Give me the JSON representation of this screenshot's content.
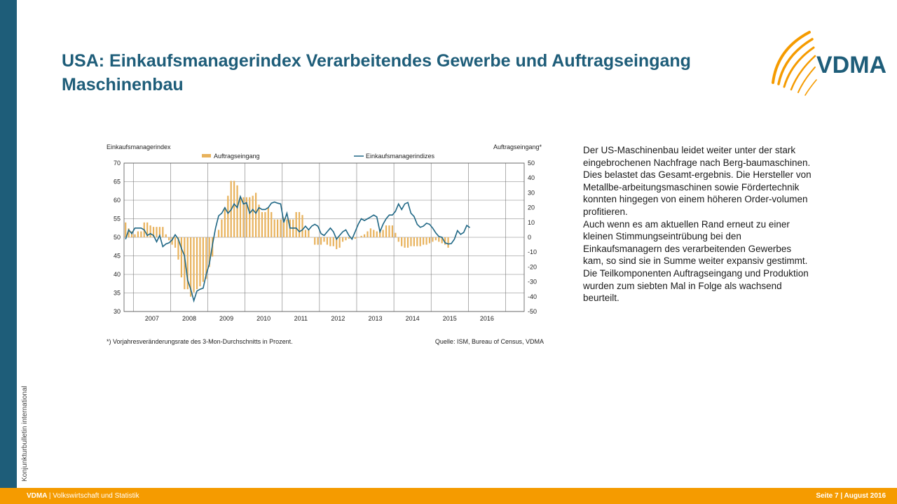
{
  "title": "USA: Einkaufsmanagerindex Verarbeitendes Gewerbe und Auftragseingang Maschinenbau",
  "logo_text": "VDMA",
  "sidebar_label": "Konjunkturbulletin international",
  "footer": {
    "org": "VDMA",
    "dept": "| Volkswirtschaft und Statistik",
    "page": "Seite 7 | August 2016"
  },
  "body_text": {
    "p1": "Der US-Maschinenbau leidet weiter unter der stark eingebrochenen Nachfrage nach Berg-baumaschinen. Dies belastet das Gesamt-ergebnis. Die Hersteller von Metallbe-arbeitungsmaschinen sowie Fördertechnik konnten hingegen von einem höheren Order-volumen profitieren.",
    "p2": "Auch wenn es am aktuellen Rand erneut zu einer kleinen Stimmungseintrübung bei den Einkaufsmanagern des verarbeitenden Gewerbes kam, so sind sie in Summe weiter expansiv gestimmt.  Die Teilkomponenten Auftragseingang und Produktion wurden zum siebten Mal in Folge als wachsend beurteilt."
  },
  "colors": {
    "accent_blue": "#1e5d79",
    "orange": "#f59b00",
    "bar": "#e8b25c",
    "line": "#1f6785"
  },
  "chart_data": {
    "type": "bar+line",
    "left_axis_label": "Einkaufsmanagerindex",
    "right_axis_label": "Auftragseingang*",
    "left_ylim": [
      30,
      70
    ],
    "left_ticks": [
      30,
      35,
      40,
      45,
      50,
      55,
      60,
      65,
      70
    ],
    "right_ylim": [
      -50,
      50
    ],
    "right_ticks": [
      -50,
      -40,
      -30,
      -20,
      -10,
      0,
      10,
      20,
      30,
      40,
      50
    ],
    "x_tick_labels": [
      "2007",
      "2008",
      "2009",
      "2010",
      "2011",
      "2012",
      "2013",
      "2014",
      "2015",
      "2016"
    ],
    "x_start_year": 2006.75,
    "x_end_year": 2017.5,
    "grid": true,
    "legend_position": "top",
    "footnote": "*) Vorjahresveränderungsrate des 3-Mon-Durchschnitts in Prozent.",
    "source": "Quelle: ISM, Bureau of Census, VDMA",
    "series": [
      {
        "name": "Auftragseingang",
        "kind": "bar",
        "axis": "right",
        "start": "2006-01",
        "values": [
          2,
          3,
          4,
          6,
          5,
          4,
          6,
          8,
          10,
          10,
          6,
          4,
          2,
          4,
          4,
          10,
          10,
          8,
          7,
          7,
          7,
          7,
          2,
          -2,
          -5,
          -7,
          -15,
          -27,
          -35,
          -35,
          -40,
          -37,
          -35,
          -33,
          -30,
          -28,
          -20,
          -13,
          0,
          5,
          12,
          20,
          28,
          38,
          38,
          35,
          27,
          27,
          27,
          27,
          28,
          30,
          22,
          17,
          17,
          20,
          17,
          12,
          12,
          12,
          13,
          12,
          12,
          12,
          17,
          17,
          15,
          5,
          5,
          0,
          -5,
          -5,
          -5,
          -3,
          -5,
          -6,
          -6,
          -8,
          -7,
          -3,
          -2,
          -1,
          0,
          -1,
          0,
          1,
          2,
          4,
          6,
          5,
          4,
          4,
          5,
          8,
          8,
          8,
          3,
          -3,
          -6,
          -7,
          -7,
          -6,
          -6,
          -6,
          -6,
          -5,
          -5,
          -4,
          -3,
          -2,
          -3,
          -4,
          -5,
          -7
        ]
      },
      {
        "name": "Einkaufsmanagerindizes",
        "kind": "line",
        "axis": "left",
        "start": "2006-10",
        "values": [
          49.5,
          52,
          51,
          52.5,
          52.5,
          52.5,
          52,
          50.5,
          51,
          50.5,
          48.8,
          50.5,
          47.5,
          48.2,
          48.5,
          49.3,
          50.7,
          49.5,
          47,
          45,
          38.5,
          36,
          32.9,
          35.5,
          36,
          36.3,
          40,
          42.8,
          48,
          52.5,
          55.8,
          56.5,
          58,
          56.5,
          57.4,
          59,
          58,
          61,
          59,
          59.3,
          56.5,
          57.5,
          56.5,
          58,
          57.5,
          57.5,
          58,
          59.2,
          59.5,
          59.2,
          59,
          54,
          56.5,
          52.5,
          52.5,
          52.5,
          51.5,
          52,
          53,
          52,
          53,
          53.5,
          53,
          51,
          50.5,
          51.5,
          52.5,
          51.5,
          49.5,
          50.5,
          51.5,
          52,
          50.5,
          49.5,
          51.5,
          53.5,
          55,
          54.5,
          55,
          55.5,
          56,
          55.5,
          51.5,
          53.5,
          55,
          56,
          56,
          57,
          59,
          57.5,
          59,
          59.4,
          56.5,
          55.6,
          53.5,
          52.7,
          53,
          53.8,
          53.5,
          52.5,
          51.2,
          50.2,
          50,
          48.5,
          48.2,
          48.3,
          49.5,
          51.8,
          50.8,
          51.3,
          53.2,
          52.6
        ]
      }
    ]
  }
}
